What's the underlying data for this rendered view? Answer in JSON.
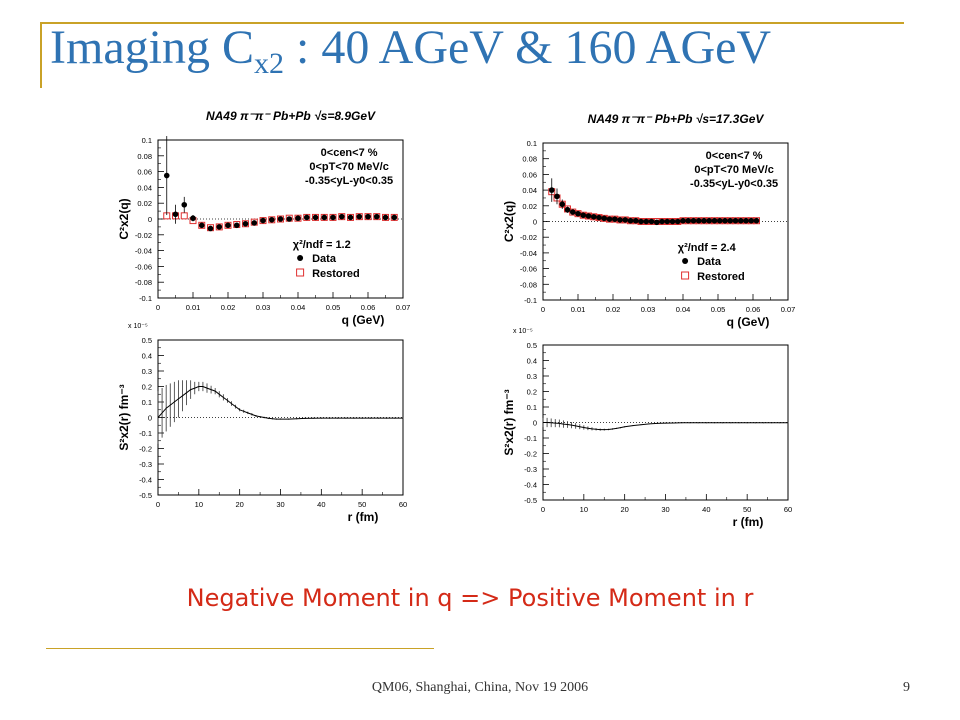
{
  "slide": {
    "title_main": "Imaging C",
    "title_sub": "x2",
    "title_rest": " : 40 AGeV & 160 AGeV",
    "caption": "Negative Moment in q => Positive Moment in r",
    "footer": "QM06, Shanghai, China, Nov 19 2006",
    "page_number": "9",
    "accent_color": "#c9a227",
    "title_color": "#2f73b3",
    "caption_color": "#d42a17"
  },
  "chart_data": [
    {
      "type": "scatter",
      "id": "q-left",
      "header": "NA49 π⁻π⁻ Pb+Pb √s=8.9GeV",
      "xlabel": "q (GeV)",
      "ylabel": "C²x2(q)",
      "xlim": [
        0,
        0.07
      ],
      "ylim": [
        -0.1,
        0.1
      ],
      "xticks": [
        "0",
        "0.01",
        "0.02",
        "0.03",
        "0.04",
        "0.05",
        "0.06",
        "0.07"
      ],
      "yticks": [
        "-0.1",
        "-0.08",
        "-0.06",
        "-0.04",
        "-0.02",
        "0",
        "0.02",
        "0.04",
        "0.06",
        "0.08",
        "0.1"
      ],
      "cuts": [
        "0<cen<7 %",
        "0<pT<70 MeV/c",
        "-0.35<yL-y0<0.35"
      ],
      "chi2": "χ²/ndf = 1.2",
      "legend": [
        "Data",
        "Restored"
      ],
      "series": [
        {
          "name": "Data",
          "x": [
            0.0025,
            0.005,
            0.0075,
            0.01,
            0.0125,
            0.015,
            0.0175,
            0.02,
            0.0225,
            0.025,
            0.0275,
            0.03,
            0.0325,
            0.035,
            0.0375,
            0.04,
            0.0425,
            0.045,
            0.0475,
            0.05,
            0.0525,
            0.055,
            0.0575,
            0.06,
            0.0625,
            0.065,
            0.0675
          ],
          "y": [
            0.055,
            0.006,
            0.018,
            0.001,
            -0.008,
            -0.012,
            -0.01,
            -0.008,
            -0.008,
            -0.006,
            -0.005,
            -0.002,
            -0.001,
            0.0,
            0.0,
            0.001,
            0.002,
            0.002,
            0.002,
            0.002,
            0.003,
            0.002,
            0.003,
            0.003,
            0.003,
            0.002,
            0.002
          ],
          "err": [
            0.05,
            0.012,
            0.01,
            0.004,
            0.003,
            0.002,
            0.002,
            0.002,
            0.002,
            0.002,
            0.002,
            0.002,
            0.002,
            0.002,
            0.002,
            0.002,
            0.002,
            0.002,
            0.002,
            0.002,
            0.002,
            0.002,
            0.002,
            0.002,
            0.002,
            0.002,
            0.002
          ]
        },
        {
          "name": "Restored",
          "x": [
            0.0025,
            0.005,
            0.0075,
            0.01,
            0.0125,
            0.015,
            0.0175,
            0.02,
            0.0225,
            0.025,
            0.0275,
            0.03,
            0.0325,
            0.035,
            0.0375,
            0.04,
            0.0425,
            0.045,
            0.0475,
            0.05,
            0.0525,
            0.055,
            0.0575,
            0.06,
            0.0625,
            0.065,
            0.0675
          ],
          "y": [
            0.004,
            0.004,
            0.004,
            -0.002,
            -0.008,
            -0.011,
            -0.01,
            -0.008,
            -0.007,
            -0.006,
            -0.004,
            -0.002,
            -0.001,
            0.0,
            0.001,
            0.001,
            0.002,
            0.002,
            0.002,
            0.002,
            0.003,
            0.002,
            0.003,
            0.003,
            0.003,
            0.002,
            0.002
          ]
        }
      ]
    },
    {
      "type": "scatter",
      "id": "q-right",
      "header": "NA49 π⁻π⁻ Pb+Pb √s=17.3GeV",
      "xlabel": "q (GeV)",
      "ylabel": "C²x2(q)",
      "xlim": [
        0,
        0.07
      ],
      "ylim": [
        -0.1,
        0.1
      ],
      "xticks": [
        "0",
        "0.01",
        "0.02",
        "0.03",
        "0.04",
        "0.05",
        "0.06",
        "0.07"
      ],
      "yticks": [
        "-0.1",
        "-0.08",
        "-0.06",
        "-0.04",
        "-0.02",
        "0",
        "0.02",
        "0.04",
        "0.06",
        "0.08",
        "0.1"
      ],
      "cuts": [
        "0<cen<7 %",
        "0<pT<70 MeV/c",
        "-0.35<yL-y0<0.35"
      ],
      "chi2": "χ²/ndf = 2.4",
      "legend": [
        "Data",
        "Restored"
      ],
      "series": [
        {
          "name": "Data",
          "x": [
            0.0025,
            0.004,
            0.0055,
            0.007,
            0.0085,
            0.01,
            0.0115,
            0.013,
            0.0145,
            0.016,
            0.0175,
            0.019,
            0.0205,
            0.022,
            0.0235,
            0.025,
            0.0265,
            0.028,
            0.0295,
            0.031,
            0.0325,
            0.034,
            0.0355,
            0.037,
            0.0385,
            0.04,
            0.0415,
            0.043,
            0.0445,
            0.046,
            0.0475,
            0.049,
            0.0505,
            0.052,
            0.0535,
            0.055,
            0.0565,
            0.058,
            0.0595,
            0.061
          ],
          "y": [
            0.04,
            0.032,
            0.022,
            0.015,
            0.012,
            0.01,
            0.008,
            0.007,
            0.006,
            0.005,
            0.004,
            0.003,
            0.003,
            0.002,
            0.002,
            0.001,
            0.001,
            0.0,
            0.0,
            0.0,
            -0.001,
            0.0,
            0.0,
            0.0,
            0.0,
            0.001,
            0.001,
            0.001,
            0.001,
            0.001,
            0.001,
            0.001,
            0.001,
            0.001,
            0.001,
            0.001,
            0.001,
            0.001,
            0.001,
            0.001
          ],
          "err": [
            0.015,
            0.01,
            0.006,
            0.004,
            0.003,
            0.003,
            0.002,
            0.002,
            0.002,
            0.002,
            0.002,
            0.002,
            0.002,
            0.002,
            0.002,
            0.002,
            0.002,
            0.002,
            0.002,
            0.002,
            0.002,
            0.002,
            0.002,
            0.002,
            0.002,
            0.002,
            0.002,
            0.002,
            0.002,
            0.002,
            0.002,
            0.002,
            0.002,
            0.002,
            0.002,
            0.002,
            0.002,
            0.002,
            0.002,
            0.002
          ]
        },
        {
          "name": "Restored",
          "x": [
            0.0025,
            0.004,
            0.0055,
            0.007,
            0.0085,
            0.01,
            0.0115,
            0.013,
            0.0145,
            0.016,
            0.0175,
            0.019,
            0.0205,
            0.022,
            0.0235,
            0.025,
            0.0265,
            0.028,
            0.0295,
            0.031,
            0.0325,
            0.034,
            0.0355,
            0.037,
            0.0385,
            0.04,
            0.0415,
            0.043,
            0.0445,
            0.046,
            0.0475,
            0.049,
            0.0505,
            0.052,
            0.0535,
            0.055,
            0.0565,
            0.058,
            0.0595,
            0.061
          ],
          "y": [
            0.038,
            0.03,
            0.022,
            0.016,
            0.012,
            0.01,
            0.008,
            0.007,
            0.006,
            0.005,
            0.004,
            0.003,
            0.003,
            0.002,
            0.002,
            0.001,
            0.001,
            0.0,
            0.0,
            0.0,
            0.0,
            0.0,
            0.0,
            0.0,
            0.0,
            0.001,
            0.001,
            0.001,
            0.001,
            0.001,
            0.001,
            0.001,
            0.001,
            0.001,
            0.001,
            0.001,
            0.001,
            0.001,
            0.001,
            0.001
          ]
        }
      ]
    },
    {
      "type": "line",
      "id": "r-left",
      "exponent": "x 10⁻⁵",
      "xlabel": "r (fm)",
      "ylabel": "S²x2(r) fm⁻³",
      "xlim": [
        0,
        60
      ],
      "ylim": [
        -0.5,
        0.5
      ],
      "xticks": [
        "0",
        "10",
        "20",
        "30",
        "40",
        "50",
        "60"
      ],
      "yticks": [
        "-0.5",
        "-0.4",
        "-0.3",
        "-0.2",
        "-0.1",
        "0",
        "0.1",
        "0.2",
        "0.3",
        "0.4",
        "0.5"
      ],
      "series": [
        {
          "name": "S(r)",
          "x": [
            0,
            1,
            2,
            3,
            4,
            5,
            6,
            7,
            8,
            9,
            10,
            11,
            12,
            13,
            14,
            15,
            16,
            17,
            18,
            19,
            20,
            21,
            22,
            23,
            24,
            25,
            26,
            27,
            28,
            29,
            30,
            32,
            34,
            36,
            38,
            40,
            42,
            44,
            46,
            48,
            50,
            52,
            54,
            56,
            58,
            60
          ],
          "y": [
            0.0,
            0.03,
            0.06,
            0.08,
            0.1,
            0.12,
            0.14,
            0.16,
            0.18,
            0.19,
            0.2,
            0.2,
            0.19,
            0.18,
            0.17,
            0.15,
            0.13,
            0.11,
            0.09,
            0.07,
            0.05,
            0.04,
            0.03,
            0.02,
            0.01,
            0.005,
            0.0,
            -0.005,
            -0.008,
            -0.01,
            -0.01,
            -0.01,
            -0.008,
            -0.006,
            -0.005,
            -0.004,
            -0.004,
            -0.004,
            -0.004,
            -0.004,
            -0.004,
            -0.004,
            -0.004,
            -0.004,
            -0.004,
            -0.004
          ],
          "err": [
            0.17,
            0.16,
            0.15,
            0.14,
            0.13,
            0.12,
            0.1,
            0.08,
            0.06,
            0.04,
            0.03,
            0.03,
            0.03,
            0.025,
            0.02,
            0.02,
            0.02,
            0.015,
            0.015,
            0.012,
            0.01,
            0.01,
            0.008,
            0.008,
            0.006,
            0.005,
            0.005,
            0.005,
            0.004,
            0.004,
            0.004,
            0.004,
            0.004,
            0.004,
            0.004,
            0.004,
            0.004,
            0.004,
            0.004,
            0.004,
            0.004,
            0.004,
            0.004,
            0.004,
            0.004,
            0.004
          ]
        }
      ]
    },
    {
      "type": "line",
      "id": "r-right",
      "exponent": "x 10⁻⁵",
      "xlabel": "r (fm)",
      "ylabel": "S²x2(r) fm⁻³",
      "xlim": [
        0,
        60
      ],
      "ylim": [
        -0.5,
        0.5
      ],
      "xticks": [
        "0",
        "10",
        "20",
        "30",
        "40",
        "50",
        "60"
      ],
      "yticks": [
        "-0.5",
        "-0.4",
        "-0.3",
        "-0.2",
        "-0.1",
        "0",
        "0.1",
        "0.2",
        "0.3",
        "0.4",
        "0.5"
      ],
      "series": [
        {
          "name": "S(r)",
          "x": [
            0,
            1,
            2,
            3,
            4,
            5,
            6,
            7,
            8,
            9,
            10,
            11,
            12,
            13,
            14,
            15,
            16,
            17,
            18,
            19,
            20,
            22,
            24,
            26,
            28,
            30,
            32,
            34,
            36,
            38,
            40,
            42,
            44,
            46,
            48,
            50,
            52,
            54,
            56,
            58,
            60
          ],
          "y": [
            0.0,
            0.0,
            -0.002,
            -0.004,
            -0.006,
            -0.01,
            -0.013,
            -0.017,
            -0.022,
            -0.027,
            -0.032,
            -0.037,
            -0.041,
            -0.044,
            -0.046,
            -0.046,
            -0.045,
            -0.042,
            -0.038,
            -0.033,
            -0.028,
            -0.02,
            -0.014,
            -0.009,
            -0.006,
            -0.004,
            -0.003,
            -0.002,
            -0.002,
            -0.002,
            -0.002,
            -0.002,
            -0.002,
            -0.002,
            -0.002,
            -0.002,
            -0.002,
            -0.002,
            -0.002,
            -0.002,
            -0.002
          ],
          "err": [
            0.03,
            0.03,
            0.028,
            0.026,
            0.025,
            0.024,
            0.022,
            0.02,
            0.018,
            0.016,
            0.014,
            0.012,
            0.01,
            0.008,
            0.007,
            0.006,
            0.005,
            0.005,
            0.004,
            0.004,
            0.004,
            0.003,
            0.003,
            0.003,
            0.003,
            0.003,
            0.003,
            0.003,
            0.003,
            0.003,
            0.003,
            0.003,
            0.003,
            0.003,
            0.003,
            0.003,
            0.003,
            0.003,
            0.003,
            0.003,
            0.003
          ]
        }
      ]
    }
  ]
}
